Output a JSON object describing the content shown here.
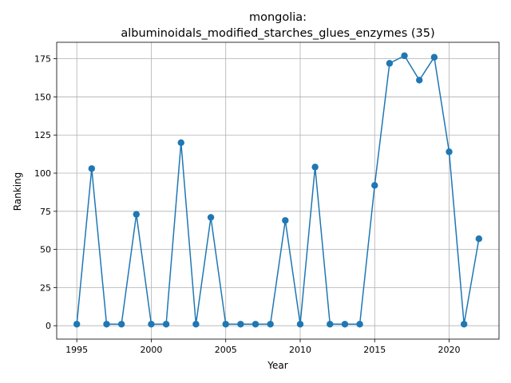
{
  "chart_data": {
    "type": "line",
    "title_line1": "mongolia:",
    "title_line2": "albuminoidals_modified_starches_glues_enzymes (35)",
    "xlabel": "Year",
    "ylabel": "Ranking",
    "xlim": [
      1993.65,
      2023.35
    ],
    "ylim": [
      -8.8,
      185.8
    ],
    "xticks": [
      1995,
      2000,
      2005,
      2010,
      2015,
      2020
    ],
    "yticks": [
      0,
      25,
      50,
      75,
      100,
      125,
      150,
      175
    ],
    "grid": true,
    "line_color": "#1f77b4",
    "series": [
      {
        "x": [
          1995,
          1996,
          1997,
          1998,
          1999,
          2000,
          2001,
          2002,
          2003,
          2004,
          2005,
          2006,
          2007,
          2008,
          2009,
          2010,
          2011,
          2012,
          2013,
          2014,
          2015,
          2016,
          2017,
          2018,
          2019,
          2020,
          2021,
          2022
        ],
        "values": [
          1,
          103,
          1,
          1,
          73,
          1,
          1,
          120,
          1,
          71,
          1,
          1,
          1,
          1,
          69,
          1,
          104,
          1,
          1,
          1,
          92,
          172,
          177,
          161,
          176,
          114,
          1,
          57
        ]
      }
    ]
  }
}
